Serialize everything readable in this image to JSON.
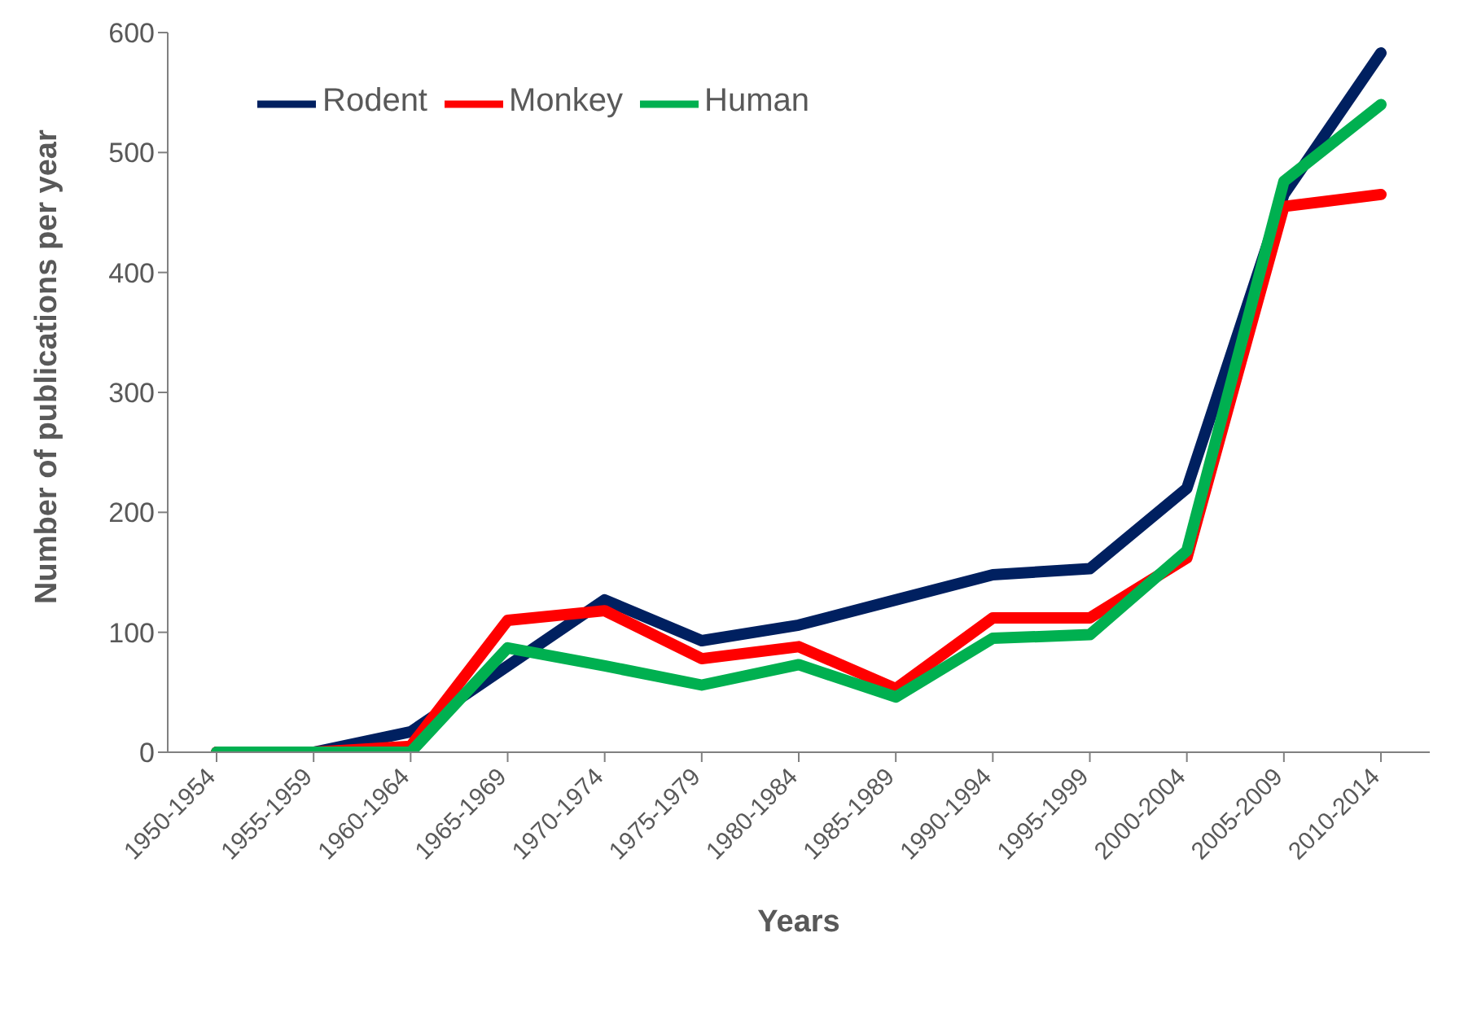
{
  "chart_data": {
    "type": "line",
    "xlabel": "Years",
    "ylabel": "Number of publications per year",
    "categories": [
      "1950-1954",
      "1955-1959",
      "1960-1964",
      "1965-1969",
      "1970-1974",
      "1975-1979",
      "1980-1984",
      "1985-1989",
      "1990-1994",
      "1995-1999",
      "2000-2004",
      "2005-2009",
      "2010-2014"
    ],
    "series": [
      {
        "name": "Rodent",
        "color": "#002060",
        "values": [
          0,
          0,
          17,
          72,
          127,
          93,
          106,
          127,
          148,
          153,
          220,
          465,
          583
        ]
      },
      {
        "name": "Monkey",
        "color": "#ff0000",
        "values": [
          0,
          0,
          5,
          110,
          118,
          78,
          88,
          53,
          112,
          112,
          162,
          455,
          465
        ]
      },
      {
        "name": "Human",
        "color": "#00b050",
        "values": [
          0,
          0,
          0,
          87,
          72,
          56,
          73,
          46,
          95,
          98,
          168,
          476,
          540
        ]
      }
    ],
    "ylim": [
      0,
      600
    ],
    "yticks": [
      0,
      100,
      200,
      300,
      400,
      500,
      600
    ],
    "legend": "top left",
    "marker": "none",
    "line_style": "solid"
  }
}
